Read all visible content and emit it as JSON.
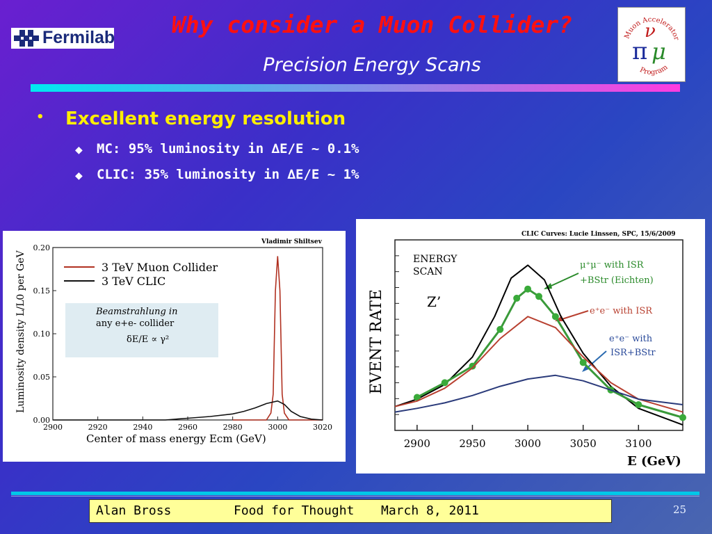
{
  "header": {
    "logo_text": "Fermilab",
    "title": "Why consider a Muon Collider?",
    "subtitle": "Precision Energy Scans",
    "map_logo": {
      "top": "Muon Accelerator",
      "bottom": "Program"
    }
  },
  "bullets": {
    "main": "Excellent energy resolution",
    "subs": [
      "MC: 95% luminosity in ∆E/E ~ 0.1%",
      "CLIC: 35% luminosity in ∆E/E ~ 1%"
    ]
  },
  "footer": {
    "author": "Alan Bross",
    "topic": "Food for Thought",
    "date": "March 8, 2011",
    "page": "25"
  },
  "chart_data": [
    {
      "type": "line",
      "credit": "Vladimir Shiltsev",
      "xlabel": "Center of mass energy  Ecm (GeV)",
      "ylabel": "Luminosity density L/L0 per GeV",
      "xlim": [
        2900,
        3020
      ],
      "ylim": [
        0,
        0.2
      ],
      "xticks": [
        "2900",
        "2920",
        "2940",
        "2960",
        "2980",
        "3000",
        "3020"
      ],
      "yticks": [
        "0.00",
        "0.05",
        "0.10",
        "0.15",
        "0.20"
      ],
      "legend": [
        "3 TeV Muon Collider",
        "3 TeV CLIC"
      ],
      "annotation": [
        "Beamstrahlung in",
        "any e+e- collider",
        "δE/E ∝ γ²"
      ],
      "series": [
        {
          "name": "3 TeV Muon Collider",
          "color": "#b03020",
          "x": [
            2980,
            2995,
            2997,
            2998,
            2999,
            3000,
            3001,
            3002,
            3003,
            3005,
            3020
          ],
          "values": [
            0,
            0,
            0.008,
            0.03,
            0.15,
            0.19,
            0.15,
            0.03,
            0.008,
            0,
            0
          ]
        },
        {
          "name": "3 TeV CLIC",
          "color": "#111111",
          "x": [
            2900,
            2950,
            2960,
            2970,
            2980,
            2985,
            2990,
            2995,
            3000,
            3003,
            3006,
            3010,
            3015,
            3020
          ],
          "values": [
            0,
            0,
            0.002,
            0.004,
            0.007,
            0.01,
            0.014,
            0.019,
            0.022,
            0.018,
            0.01,
            0.004,
            0.001,
            0
          ]
        }
      ]
    },
    {
      "type": "line",
      "credit": "CLIC Curves:  Lucie Linssen, SPC, 15/6/2009",
      "xlabel": "E (GeV)",
      "ylabel": "EVENT  RATE",
      "xlim": [
        2880,
        3140
      ],
      "xticks": [
        "2900",
        "2950",
        "3000",
        "3050",
        "3100"
      ],
      "labels": {
        "scan": [
          "ENERGY",
          "SCAN"
        ],
        "z": "Z’",
        "mumu": [
          "μ⁺μ⁻ with ISR",
          "+BStr (Eichten)"
        ],
        "ee": "e⁺e⁻ with ISR",
        "ee2": [
          "e⁺e⁻ with",
          "ISR+BStr"
        ]
      },
      "series": [
        {
          "name": "black",
          "color": "#000000",
          "x": [
            2880,
            2900,
            2925,
            2950,
            2970,
            2985,
            3000,
            3015,
            3030,
            3050,
            3075,
            3100,
            3140
          ],
          "values": [
            0.13,
            0.17,
            0.25,
            0.4,
            0.62,
            0.83,
            0.9,
            0.82,
            0.62,
            0.42,
            0.24,
            0.12,
            0.03
          ]
        },
        {
          "name": "mumu",
          "color": "#3a9a3a",
          "x": [
            2900,
            2925,
            2950,
            2975,
            2990,
            3000,
            3010,
            3025,
            3050,
            3075,
            3100,
            3140
          ],
          "values": [
            0.18,
            0.26,
            0.35,
            0.55,
            0.72,
            0.77,
            0.73,
            0.62,
            0.37,
            0.22,
            0.14,
            0.07
          ]
        },
        {
          "name": "ee",
          "color": "#b84030",
          "x": [
            2880,
            2900,
            2925,
            2950,
            2975,
            3000,
            3025,
            3050,
            3075,
            3100,
            3140
          ],
          "values": [
            0.13,
            0.16,
            0.23,
            0.34,
            0.5,
            0.62,
            0.56,
            0.4,
            0.26,
            0.17,
            0.1
          ]
        },
        {
          "name": "ee2",
          "color": "#2a3a7a",
          "x": [
            2880,
            2900,
            2925,
            2950,
            2975,
            3000,
            3025,
            3050,
            3075,
            3100,
            3140
          ],
          "values": [
            0.1,
            0.12,
            0.15,
            0.19,
            0.24,
            0.28,
            0.3,
            0.27,
            0.22,
            0.17,
            0.14
          ]
        }
      ]
    }
  ]
}
